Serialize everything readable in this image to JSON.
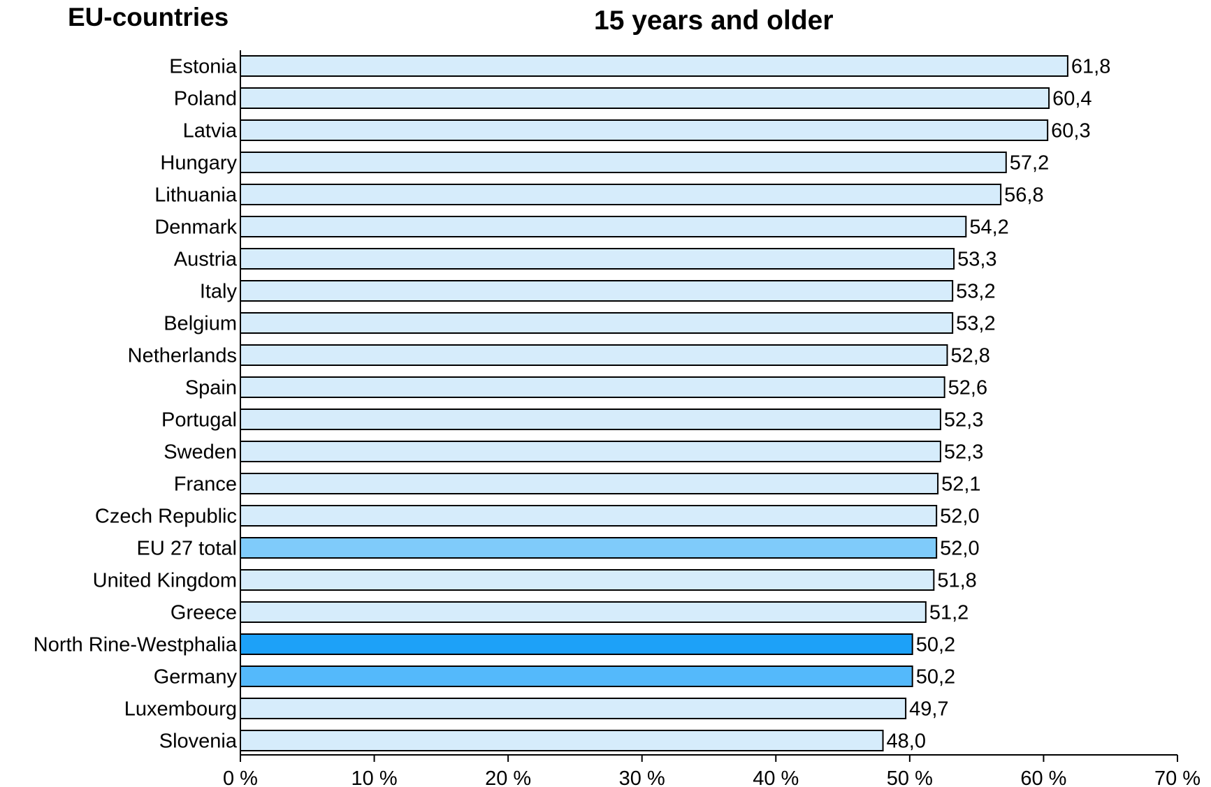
{
  "chart_data": {
    "type": "bar",
    "orientation": "horizontal",
    "title": "15 years and older",
    "subtitle": "EU-countries",
    "xlabel": "",
    "ylabel": "",
    "xlim": [
      0,
      70
    ],
    "x_tick_labels": [
      "0 %",
      "10 %",
      "20 %",
      "30 %",
      "40 %",
      "50 %",
      "60 %",
      "70 %"
    ],
    "x_ticks": [
      0,
      10,
      20,
      30,
      40,
      50,
      60,
      70
    ],
    "grid": false,
    "categories": [
      "Estonia",
      "Poland",
      "Latvia",
      "Hungary",
      "Lithuania",
      "Denmark",
      "Austria",
      "Italy",
      "Belgium",
      "Netherlands",
      "Spain",
      "Portugal",
      "Sweden",
      "France",
      "Czech Republic",
      "EU 27 total",
      "United Kingdom",
      "Greece",
      "North Rine-Westphalia",
      "Germany",
      "Luxembourg",
      "Slovenia"
    ],
    "values": [
      61.8,
      60.4,
      60.3,
      57.2,
      56.8,
      54.2,
      53.3,
      53.2,
      53.2,
      52.8,
      52.6,
      52.3,
      52.3,
      52.1,
      52.0,
      52.0,
      51.8,
      51.2,
      50.2,
      50.2,
      49.7,
      48.0
    ],
    "value_labels": [
      "61,8",
      "60,4",
      "60,3",
      "57,2",
      "56,8",
      "54,2",
      "53,3",
      "53,2",
      "53,2",
      "52,8",
      "52,6",
      "52,3",
      "52,3",
      "52,1",
      "52,0",
      "52,0",
      "51,8",
      "51,2",
      "50,2",
      "50,2",
      "49,7",
      "48,0"
    ],
    "bar_colors": [
      "#d6ecfb",
      "#d6ecfb",
      "#d6ecfb",
      "#d6ecfb",
      "#d6ecfb",
      "#d6ecfb",
      "#d6ecfb",
      "#d6ecfb",
      "#d6ecfb",
      "#d6ecfb",
      "#d6ecfb",
      "#d6ecfb",
      "#d6ecfb",
      "#d6ecfb",
      "#d6ecfb",
      "#7fcbfa",
      "#d6ecfb",
      "#d6ecfb",
      "#1da1f8",
      "#54b9fb",
      "#d6ecfb",
      "#d6ecfb"
    ],
    "bar_stroke": "#000000"
  }
}
